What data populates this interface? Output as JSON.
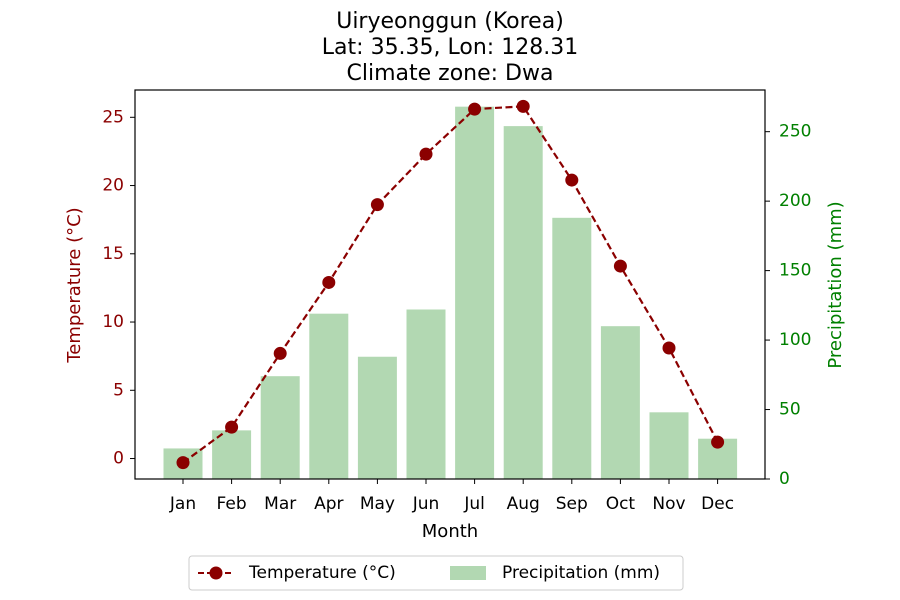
{
  "chart_data": {
    "type": "bar+line",
    "title_lines": [
      "Uiryeonggun (Korea)",
      "Lat: 35.35, Lon: 128.31",
      "Climate zone: Dwa"
    ],
    "xlabel": "Month",
    "categories": [
      "Jan",
      "Feb",
      "Mar",
      "Apr",
      "May",
      "Jun",
      "Jul",
      "Aug",
      "Sep",
      "Oct",
      "Nov",
      "Dec"
    ],
    "temperature": {
      "name": "Temperature (°C)",
      "axis_label": "Temperature (°C)",
      "values": [
        -0.3,
        2.3,
        7.7,
        12.9,
        18.6,
        22.3,
        25.6,
        25.8,
        20.4,
        14.1,
        8.1,
        1.2
      ],
      "ylim": [
        -1.5,
        27
      ],
      "yticks": [
        0,
        5,
        10,
        15,
        20,
        25
      ],
      "color": "#8b0000"
    },
    "precipitation": {
      "name": "Precipitation (mm)",
      "axis_label": "Precipitation (mm)",
      "values": [
        22,
        35,
        74,
        119,
        88,
        122,
        268,
        254,
        188,
        110,
        48,
        29
      ],
      "ylim": [
        0,
        280
      ],
      "yticks": [
        0,
        50,
        100,
        150,
        200,
        250
      ],
      "color": "#b2d8b2",
      "axis_color": "#008000"
    },
    "legend_placement": "bottom-center"
  }
}
